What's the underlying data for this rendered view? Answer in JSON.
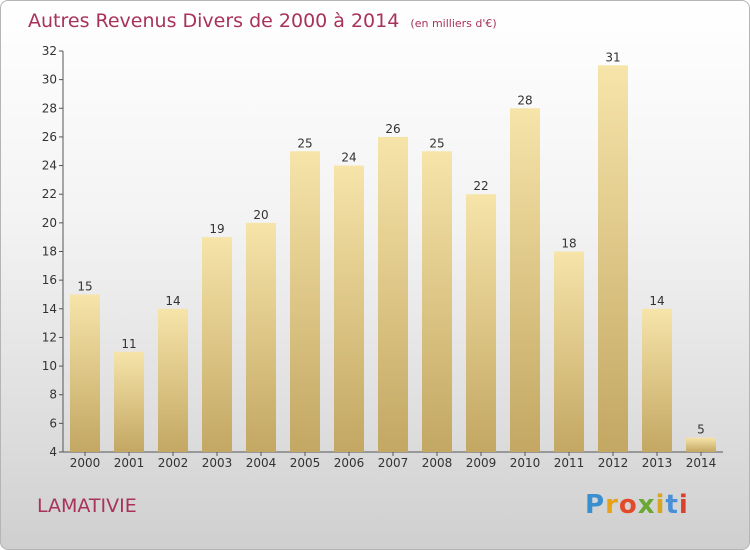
{
  "title": "Autres Revenus Divers de 2000 à 2014",
  "unit": "(en milliers d'€)",
  "commune": "LAMATIVIE",
  "logo": {
    "text": "Proxiti",
    "colors": [
      "#3a8fd1",
      "#e8a21a",
      "#e34a2a",
      "#6aa834",
      "#d8a520",
      "#4a90d9",
      "#d9412f"
    ]
  },
  "colors": {
    "bar_light": "#f5e3a8",
    "bar_dark": "#c4a864",
    "title": "#a8325a"
  },
  "chart_data": {
    "type": "bar",
    "categories": [
      "2000",
      "2001",
      "2002",
      "2003",
      "2004",
      "2005",
      "2006",
      "2007",
      "2008",
      "2009",
      "2010",
      "2011",
      "2012",
      "2013",
      "2014"
    ],
    "values": [
      15,
      11,
      14,
      19,
      20,
      25,
      24,
      26,
      25,
      22,
      28,
      18,
      31,
      14,
      5
    ],
    "ylim": [
      4,
      32
    ],
    "yticks": [
      4,
      6,
      8,
      10,
      12,
      14,
      16,
      18,
      20,
      22,
      24,
      26,
      28,
      30,
      32
    ],
    "grid": false,
    "title": "Autres Revenus Divers de 2000 à 2014",
    "xlabel": "",
    "ylabel": ""
  }
}
